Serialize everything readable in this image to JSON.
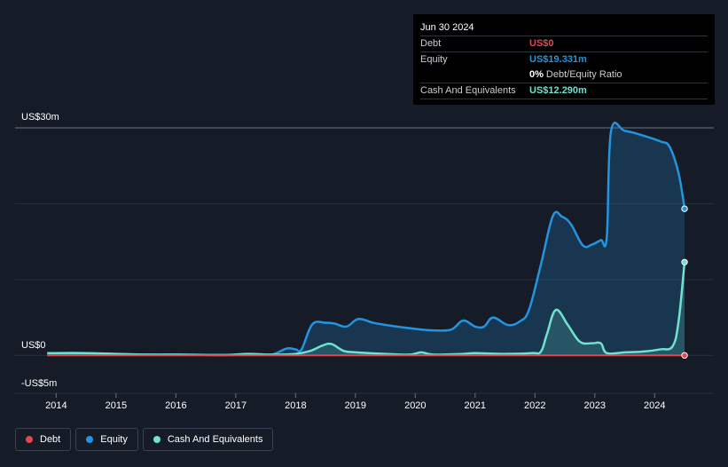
{
  "tooltip": {
    "date": "Jun 30 2024",
    "debt_label": "Debt",
    "debt_value": "US$0",
    "equity_label": "Equity",
    "equity_value": "US$19.331m",
    "ratio_value": "0%",
    "ratio_label": "Debt/Equity Ratio",
    "cash_label": "Cash And Equivalents",
    "cash_value": "US$12.290m"
  },
  "colors": {
    "debt": "#e5464f",
    "equity": "#2394df",
    "cash": "#6fe3cf",
    "background": "#151b27"
  },
  "legend": [
    {
      "label": "Debt",
      "color": "#e5464f"
    },
    {
      "label": "Equity",
      "color": "#2394df"
    },
    {
      "label": "Cash And Equivalents",
      "color": "#6fe3cf"
    }
  ],
  "chart_data": {
    "type": "area",
    "x_ticks": [
      "2014",
      "2015",
      "2016",
      "2017",
      "2018",
      "2019",
      "2020",
      "2021",
      "2022",
      "2023",
      "2024"
    ],
    "y_tick_labels": [
      "US$30m",
      "US$0",
      "-US$5m"
    ],
    "ylim": [
      -5,
      30
    ],
    "grid": true,
    "legend_position": "bottom-left",
    "series": [
      {
        "name": "Debt",
        "points": [
          [
            2013.85,
            0
          ],
          [
            2024.5,
            0
          ]
        ]
      },
      {
        "name": "Equity",
        "points": [
          [
            2013.85,
            0.3
          ],
          [
            2014.5,
            0.3
          ],
          [
            2014.9,
            0.2
          ],
          [
            2015.2,
            0.1
          ],
          [
            2016.0,
            0.1
          ],
          [
            2016.8,
            0.05
          ],
          [
            2017.3,
            0.15
          ],
          [
            2017.6,
            0.1
          ],
          [
            2017.85,
            0.9
          ],
          [
            2018.0,
            0.8
          ],
          [
            2018.1,
            0.8
          ],
          [
            2018.28,
            4.1
          ],
          [
            2018.5,
            4.3
          ],
          [
            2018.65,
            4.2
          ],
          [
            2018.85,
            3.8
          ],
          [
            2019.05,
            4.8
          ],
          [
            2019.3,
            4.3
          ],
          [
            2019.6,
            3.9
          ],
          [
            2020.0,
            3.5
          ],
          [
            2020.3,
            3.3
          ],
          [
            2020.6,
            3.4
          ],
          [
            2020.8,
            4.6
          ],
          [
            2021.0,
            3.8
          ],
          [
            2021.15,
            3.8
          ],
          [
            2021.3,
            5.0
          ],
          [
            2021.55,
            4.0
          ],
          [
            2021.75,
            4.5
          ],
          [
            2021.9,
            6.0
          ],
          [
            2022.1,
            12.0
          ],
          [
            2022.3,
            18.4
          ],
          [
            2022.45,
            18.3
          ],
          [
            2022.6,
            17.3
          ],
          [
            2022.8,
            14.5
          ],
          [
            2022.95,
            14.6
          ],
          [
            2023.1,
            15.2
          ],
          [
            2023.2,
            15.6
          ],
          [
            2023.27,
            29.5
          ],
          [
            2023.5,
            29.6
          ],
          [
            2023.8,
            29.0
          ],
          [
            2024.1,
            28.2
          ],
          [
            2024.25,
            27.5
          ],
          [
            2024.4,
            24.0
          ],
          [
            2024.5,
            19.331
          ]
        ]
      },
      {
        "name": "Cash And Equivalents",
        "points": [
          [
            2013.85,
            0.3
          ],
          [
            2014.5,
            0.3
          ],
          [
            2015.0,
            0.2
          ],
          [
            2015.5,
            0.1
          ],
          [
            2016.0,
            0.1
          ],
          [
            2016.8,
            0.05
          ],
          [
            2017.2,
            0.2
          ],
          [
            2017.6,
            0.1
          ],
          [
            2018.0,
            0.2
          ],
          [
            2018.25,
            0.6
          ],
          [
            2018.45,
            1.3
          ],
          [
            2018.6,
            1.5
          ],
          [
            2018.8,
            0.6
          ],
          [
            2019.0,
            0.4
          ],
          [
            2019.5,
            0.2
          ],
          [
            2019.9,
            0.1
          ],
          [
            2020.1,
            0.4
          ],
          [
            2020.3,
            0.1
          ],
          [
            2020.8,
            0.2
          ],
          [
            2021.0,
            0.3
          ],
          [
            2021.5,
            0.2
          ],
          [
            2021.95,
            0.3
          ],
          [
            2022.1,
            0.5
          ],
          [
            2022.2,
            2.8
          ],
          [
            2022.35,
            6.0
          ],
          [
            2022.55,
            4.0
          ],
          [
            2022.75,
            1.8
          ],
          [
            2022.95,
            1.6
          ],
          [
            2023.1,
            1.6
          ],
          [
            2023.2,
            0.3
          ],
          [
            2023.5,
            0.4
          ],
          [
            2023.8,
            0.5
          ],
          [
            2024.1,
            0.8
          ],
          [
            2024.3,
            1.2
          ],
          [
            2024.4,
            4.5
          ],
          [
            2024.5,
            12.29
          ]
        ]
      }
    ]
  }
}
